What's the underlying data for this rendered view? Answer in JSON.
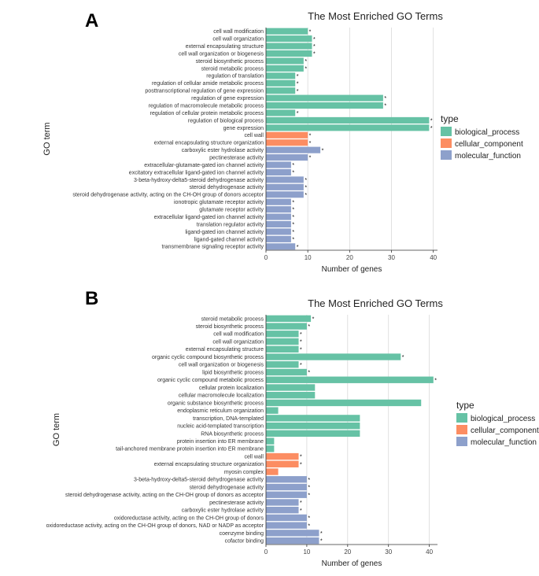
{
  "colors": {
    "biological_process": "#66c2a5",
    "cellular_component": "#fc8d62",
    "molecular_function": "#8da0cb"
  },
  "chart_data": [
    {
      "panel_label": "A",
      "type": "bar",
      "orientation": "horizontal",
      "title": "The Most Enriched GO Terms",
      "xlabel": "Number of genes",
      "ylabel": "GO term",
      "xlim": [
        0,
        41
      ],
      "xticks": [
        0,
        10,
        20,
        30,
        40
      ],
      "grid": true,
      "legend": {
        "title": "type",
        "position": "right",
        "entries": [
          "biological_process",
          "cellular_component",
          "molecular_function"
        ]
      },
      "bars": [
        {
          "term": "cell wall modification",
          "value": 10,
          "type": "biological_process",
          "mark": "*"
        },
        {
          "term": "cell wall organization",
          "value": 11,
          "type": "biological_process",
          "mark": "*"
        },
        {
          "term": "external encapsulating structure",
          "value": 11,
          "type": "biological_process",
          "mark": "*"
        },
        {
          "term": "cell wall organization or biogenesis",
          "value": 11,
          "type": "biological_process",
          "mark": "*"
        },
        {
          "term": "steroid biosynthetic process",
          "value": 9,
          "type": "biological_process",
          "mark": "*"
        },
        {
          "term": "steroid metabolic process",
          "value": 9,
          "type": "biological_process",
          "mark": "*"
        },
        {
          "term": "regulation of translation",
          "value": 7,
          "type": "biological_process",
          "mark": "*"
        },
        {
          "term": "regulation of cellular amide metabolic process",
          "value": 7,
          "type": "biological_process",
          "mark": "*"
        },
        {
          "term": "posttranscriptional regulation of gene expression",
          "value": 7,
          "type": "biological_process",
          "mark": "*"
        },
        {
          "term": "regulation of gene expression",
          "value": 28,
          "type": "biological_process",
          "mark": "*"
        },
        {
          "term": "regulation of macromolecule metabolic process",
          "value": 28,
          "type": "biological_process",
          "mark": "*"
        },
        {
          "term": "regulation of cellular protein metabolic process",
          "value": 7,
          "type": "biological_process",
          "mark": "*"
        },
        {
          "term": "regulation of biological process",
          "value": 39,
          "type": "biological_process",
          "mark": "*"
        },
        {
          "term": "gene expression",
          "value": 39,
          "type": "biological_process",
          "mark": "*"
        },
        {
          "term": "cell wall",
          "value": 10,
          "type": "cellular_component",
          "mark": "*"
        },
        {
          "term": "external encapsulating structure organization",
          "value": 10,
          "type": "cellular_component",
          "mark": "*"
        },
        {
          "term": "carboxylic ester hydrolase activity",
          "value": 13,
          "type": "molecular_function",
          "mark": "*"
        },
        {
          "term": "pectinesterase activity",
          "value": 10,
          "type": "molecular_function",
          "mark": "*"
        },
        {
          "term": "extracellular-glutamate-gated ion channel activity",
          "value": 6,
          "type": "molecular_function",
          "mark": "*"
        },
        {
          "term": "excitatory extracellular ligand-gated ion channel activity",
          "value": 6,
          "type": "molecular_function",
          "mark": "*"
        },
        {
          "term": "3-beta-hydroxy-delta5-steroid dehydrogenase activity",
          "value": 9,
          "type": "molecular_function",
          "mark": "*"
        },
        {
          "term": "steroid dehydrogenase activity",
          "value": 9,
          "type": "molecular_function",
          "mark": "*"
        },
        {
          "term": "steroid dehydrogenase activity, acting on the CH-OH group of donors acceptor",
          "value": 9,
          "type": "molecular_function",
          "mark": "*"
        },
        {
          "term": "ionotropic glutamate receptor activity",
          "value": 6,
          "type": "molecular_function",
          "mark": "*"
        },
        {
          "term": "glutamate receptor activity",
          "value": 6,
          "type": "molecular_function",
          "mark": "*"
        },
        {
          "term": "extracellular ligand-gated ion channel activity",
          "value": 6,
          "type": "molecular_function",
          "mark": "*"
        },
        {
          "term": "translation regulator activity",
          "value": 6,
          "type": "molecular_function",
          "mark": "*"
        },
        {
          "term": "ligand-gated ion channel activity",
          "value": 6,
          "type": "molecular_function",
          "mark": "*"
        },
        {
          "term": "ligand-gated channel activity",
          "value": 6,
          "type": "molecular_function",
          "mark": "*"
        },
        {
          "term": "transmembrane signaling receptor activity",
          "value": 7,
          "type": "molecular_function",
          "mark": "*"
        }
      ]
    },
    {
      "panel_label": "B",
      "type": "bar",
      "orientation": "horizontal",
      "title": "The Most Enriched GO Terms",
      "xlabel": "Number of genes",
      "ylabel": "GO term",
      "xlim": [
        0,
        42
      ],
      "xticks": [
        0,
        10,
        20,
        30,
        40
      ],
      "grid": true,
      "legend": {
        "title": "type",
        "position": "right",
        "entries": [
          "biological_process",
          "cellular_component",
          "molecular_function"
        ]
      },
      "bars": [
        {
          "term": "steroid metabolic process",
          "value": 11,
          "type": "biological_process",
          "mark": "*"
        },
        {
          "term": "steroid biosynthetic process",
          "value": 10,
          "type": "biological_process",
          "mark": "*"
        },
        {
          "term": "cell wall modification",
          "value": 8,
          "type": "biological_process",
          "mark": "*"
        },
        {
          "term": "cell wall organization",
          "value": 8,
          "type": "biological_process",
          "mark": "*"
        },
        {
          "term": "external encapsulating structure",
          "value": 8,
          "type": "biological_process",
          "mark": "*"
        },
        {
          "term": "organic cyclic compound biosynthetic process",
          "value": 33,
          "type": "biological_process",
          "mark": "*"
        },
        {
          "term": "cell wall organization or biogenesis",
          "value": 8,
          "type": "biological_process",
          "mark": "*"
        },
        {
          "term": "lipid biosynthetic process",
          "value": 10,
          "type": "biological_process",
          "mark": "*"
        },
        {
          "term": "organic cyclic compound metabolic process",
          "value": 41,
          "type": "biological_process",
          "mark": "*"
        },
        {
          "term": "cellular protein localization",
          "value": 12,
          "type": "biological_process",
          "mark": ""
        },
        {
          "term": "cellular macromolecule localization",
          "value": 12,
          "type": "biological_process",
          "mark": ""
        },
        {
          "term": "organic substance biosynthetic process",
          "value": 38,
          "type": "biological_process",
          "mark": ""
        },
        {
          "term": "endoplasmic reticulum organization",
          "value": 3,
          "type": "biological_process",
          "mark": ""
        },
        {
          "term": "transcription, DNA-templated",
          "value": 23,
          "type": "biological_process",
          "mark": ""
        },
        {
          "term": "nucleic acid-templated transcription",
          "value": 23,
          "type": "biological_process",
          "mark": ""
        },
        {
          "term": "RNA biosynthetic process",
          "value": 23,
          "type": "biological_process",
          "mark": ""
        },
        {
          "term": "protein insertion into ER membrane",
          "value": 2,
          "type": "biological_process",
          "mark": ""
        },
        {
          "term": "tail-anchored membrane protein insertion into ER membrane",
          "value": 2,
          "type": "biological_process",
          "mark": ""
        },
        {
          "term": "cell wall",
          "value": 8,
          "type": "cellular_component",
          "mark": "*"
        },
        {
          "term": "external encapsulating structure organization",
          "value": 8,
          "type": "cellular_component",
          "mark": "*"
        },
        {
          "term": "myosin complex",
          "value": 3,
          "type": "cellular_component",
          "mark": ""
        },
        {
          "term": "3-beta-hydroxy-delta5-steroid dehydrogenase activity",
          "value": 10,
          "type": "molecular_function",
          "mark": "*"
        },
        {
          "term": "steroid dehydrogenase activity",
          "value": 10,
          "type": "molecular_function",
          "mark": "*"
        },
        {
          "term": "steroid dehydrogenase activity, acting on the CH-OH group of donors as acceptor",
          "value": 10,
          "type": "molecular_function",
          "mark": "*"
        },
        {
          "term": "pectinesterase activity",
          "value": 8,
          "type": "molecular_function",
          "mark": "*"
        },
        {
          "term": "carboxylic ester hydrolase activity",
          "value": 8,
          "type": "molecular_function",
          "mark": "*"
        },
        {
          "term": "oxidoreductase activity, acting on the CH-OH group of donors",
          "value": 10,
          "type": "molecular_function",
          "mark": "*"
        },
        {
          "term": "oxidoreductase activity, acting on the CH-OH group of donors, NAD or NADP as acceptor",
          "value": 10,
          "type": "molecular_function",
          "mark": "*"
        },
        {
          "term": "coenzyme binding",
          "value": 13,
          "type": "molecular_function",
          "mark": "*"
        },
        {
          "term": "cofactor binding",
          "value": 13,
          "type": "molecular_function",
          "mark": "*"
        }
      ]
    }
  ]
}
